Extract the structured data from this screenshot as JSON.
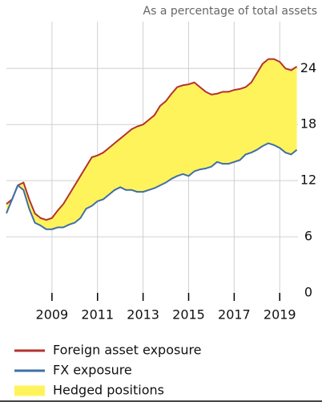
{
  "chart_data": {
    "type": "line",
    "subtitle": "As a percentage of total assets",
    "x": [
      2007,
      2007.25,
      2007.5,
      2007.75,
      2008,
      2008.25,
      2008.5,
      2008.75,
      2009,
      2009.25,
      2009.5,
      2009.75,
      2010,
      2010.25,
      2010.5,
      2010.75,
      2011,
      2011.25,
      2011.5,
      2011.75,
      2012,
      2012.25,
      2012.5,
      2012.75,
      2013,
      2013.25,
      2013.5,
      2013.75,
      2014,
      2014.25,
      2014.5,
      2014.75,
      2015,
      2015.25,
      2015.5,
      2015.75,
      2016,
      2016.25,
      2016.5,
      2016.75,
      2017,
      2017.25,
      2017.5,
      2017.75,
      2018,
      2018.25,
      2018.5,
      2018.75,
      2019,
      2019.25,
      2019.5,
      2019.75
    ],
    "series": [
      {
        "name": "Foreign asset exposure",
        "color": "#b5322e",
        "values": [
          9.5,
          10,
          11.5,
          11.8,
          10,
          8.5,
          8,
          7.8,
          8,
          8.8,
          9.5,
          10.5,
          11.5,
          12.5,
          13.5,
          14.5,
          14.7,
          15,
          15.5,
          16,
          16.5,
          17,
          17.5,
          17.8,
          18,
          18.5,
          19,
          20,
          20.5,
          21.3,
          22,
          22.2,
          22.3,
          22.5,
          22,
          21.5,
          21.2,
          21.3,
          21.5,
          21.5,
          21.7,
          21.8,
          22,
          22.5,
          23.5,
          24.5,
          25,
          25,
          24.7,
          24,
          23.8,
          24.2
        ]
      },
      {
        "name": "FX exposure",
        "color": "#3f6fa6",
        "values": [
          8.5,
          10,
          11.5,
          11,
          9,
          7.5,
          7.2,
          6.8,
          6.8,
          7,
          7,
          7.3,
          7.5,
          8,
          9,
          9.3,
          9.8,
          10,
          10.5,
          11,
          11.3,
          11,
          11,
          10.8,
          10.8,
          11,
          11.2,
          11.5,
          11.8,
          12.2,
          12.5,
          12.7,
          12.5,
          13,
          13.2,
          13.3,
          13.5,
          14,
          13.8,
          13.8,
          14,
          14.2,
          14.8,
          15,
          15.3,
          15.7,
          16,
          15.8,
          15.5,
          15,
          14.8,
          15.3
        ]
      }
    ],
    "area": {
      "name": "Hedged positions",
      "color": "#fff35c"
    },
    "xlim": [
      2007,
      2019.8
    ],
    "xticks": [
      2009,
      2011,
      2013,
      2015,
      2017,
      2019
    ],
    "ylim": [
      0,
      29
    ],
    "yticks": [
      0,
      6,
      12,
      18,
      24
    ],
    "grid": true
  }
}
